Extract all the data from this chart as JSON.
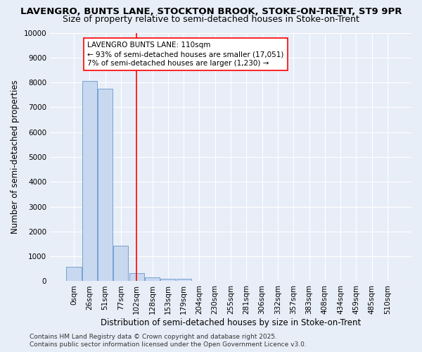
{
  "title_line1": "LAVENGRO, BUNTS LANE, STOCKTON BROOK, STOKE-ON-TRENT, ST9 9PR",
  "title_line2": "Size of property relative to semi-detached houses in Stoke-on-Trent",
  "xlabel": "Distribution of semi-detached houses by size in Stoke-on-Trent",
  "ylabel": "Number of semi-detached properties",
  "bin_labels": [
    "0sqm",
    "26sqm",
    "51sqm",
    "77sqm",
    "102sqm",
    "128sqm",
    "153sqm",
    "179sqm",
    "204sqm",
    "230sqm",
    "255sqm",
    "281sqm",
    "306sqm",
    "332sqm",
    "357sqm",
    "383sqm",
    "408sqm",
    "434sqm",
    "459sqm",
    "485sqm",
    "510sqm"
  ],
  "bar_values": [
    580,
    8050,
    7750,
    1430,
    330,
    150,
    100,
    90,
    0,
    0,
    0,
    0,
    0,
    0,
    0,
    0,
    0,
    0,
    0,
    0,
    0
  ],
  "bar_color": "#c8d8ef",
  "bar_edge_color": "#6699cc",
  "red_line_x": 4.0,
  "annotation_label": "LAVENGRO BUNTS LANE: 110sqm",
  "annotation_line1": "← 93% of semi-detached houses are smaller (17,051)",
  "annotation_line2": "7% of semi-detached houses are larger (1,230) →",
  "footer_line1": "Contains HM Land Registry data © Crown copyright and database right 2025.",
  "footer_line2": "Contains public sector information licensed under the Open Government Licence v3.0.",
  "ylim": [
    0,
    10000
  ],
  "yticks": [
    0,
    1000,
    2000,
    3000,
    4000,
    5000,
    6000,
    7000,
    8000,
    9000,
    10000
  ],
  "background_color": "#e8eef8",
  "grid_color": "#ffffff",
  "title_fontsize": 9.5,
  "subtitle_fontsize": 9.0,
  "axis_label_fontsize": 8.5,
  "tick_fontsize": 7.5,
  "annotation_fontsize": 7.5,
  "footer_fontsize": 6.5
}
